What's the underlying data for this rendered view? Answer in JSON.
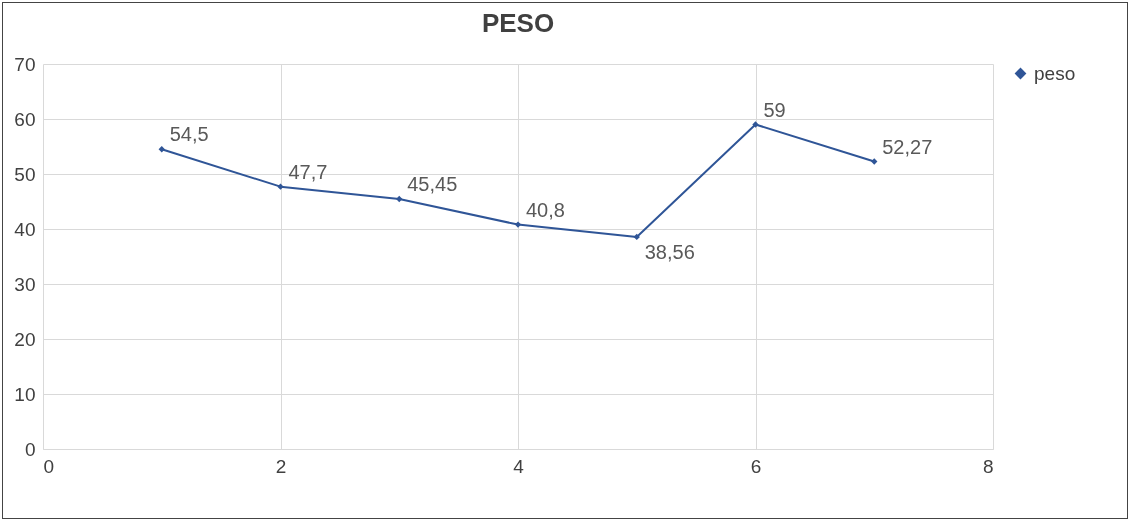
{
  "chart_data": {
    "type": "line",
    "title": "PESO",
    "x": [
      1,
      2,
      3,
      4,
      5,
      6,
      7
    ],
    "series": [
      {
        "name": "peso",
        "color": "#2f5597",
        "values": [
          54.5,
          47.7,
          45.45,
          40.8,
          38.56,
          59,
          52.27
        ],
        "value_labels": [
          "54,5",
          "47,7",
          "45,45",
          "40,8",
          "38,56",
          "59",
          "52,27"
        ]
      }
    ],
    "xlim": [
      0,
      8
    ],
    "xticks": [
      0,
      2,
      4,
      6,
      8
    ],
    "ylim": [
      0,
      70
    ],
    "yticks": [
      0,
      10,
      20,
      30,
      40,
      50,
      60,
      70
    ],
    "grid": true,
    "legend": "right",
    "marker": "diamond"
  }
}
